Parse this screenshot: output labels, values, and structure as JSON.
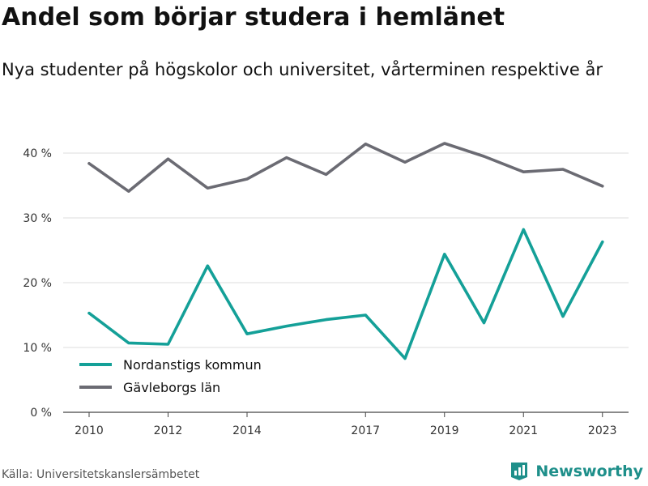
{
  "title": "Andel som börjar studera i hemlänet",
  "subtitle": "Nya studenter på högskolor och universitet, vårterminen respektive år",
  "source": "Källa: Universitetskanslersämbetet",
  "brand": {
    "name": "Newsworthy",
    "color": "#1e8f8a",
    "icon": "bar-chart-icon"
  },
  "chart_data": {
    "type": "line",
    "x": [
      2010,
      2011,
      2012,
      2013,
      2014,
      2015,
      2016,
      2017,
      2018,
      2019,
      2020,
      2021,
      2022,
      2023
    ],
    "x_tick_labels": [
      "2010",
      "2012",
      "2014",
      "2017",
      "2019",
      "2021",
      "2023"
    ],
    "y_tick_labels": [
      "0 %",
      "10 %",
      "20 %",
      "30 %",
      "40 %"
    ],
    "ylim": [
      0,
      42
    ],
    "grid": true,
    "legend_position": "lower-left",
    "series": [
      {
        "name": "Nordanstigs kommun",
        "color": "#14a098",
        "values": [
          15.3,
          10.7,
          10.5,
          22.6,
          12.1,
          13.3,
          14.3,
          15.0,
          8.3,
          24.4,
          13.8,
          28.2,
          14.8,
          26.3
        ]
      },
      {
        "name": "Gävleborgs län",
        "color": "#6b6b73",
        "values": [
          38.4,
          34.1,
          39.1,
          34.6,
          36.0,
          39.3,
          36.7,
          41.4,
          38.6,
          41.5,
          39.5,
          37.1,
          37.5,
          34.9
        ]
      }
    ]
  }
}
